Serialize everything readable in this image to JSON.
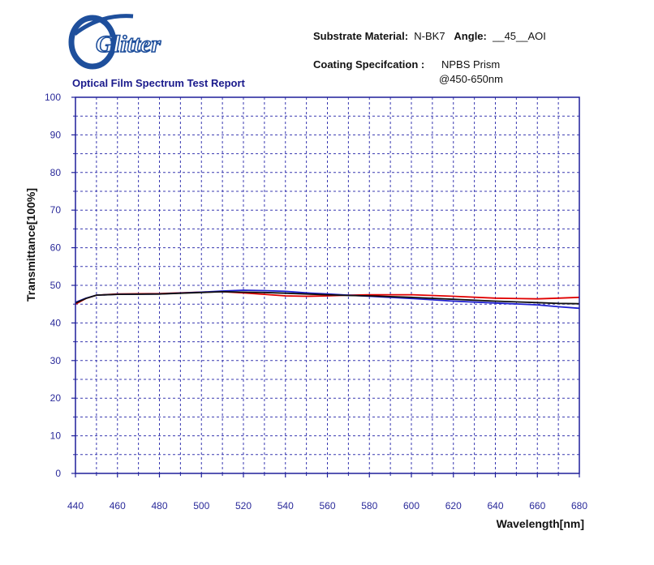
{
  "header": {
    "logo_text": "Glitter",
    "report_title": "Optical Film Spectrum Test Report",
    "substrate_label": "Substrate Material:",
    "substrate_value": "N-BK7",
    "angle_label": "Angle:",
    "angle_value": "__45__AOI",
    "coating_label": "Coating Specifcation :",
    "coating_value_1": "NPBS Prism",
    "coating_value_2": "@450-650nm"
  },
  "colors": {
    "frame": "#1f1f9a",
    "grid": "#3838b0",
    "series_red": "#e00000",
    "series_blue": "#1f1fd0",
    "series_black": "#101010",
    "logo_blue": "#1e4f9c"
  },
  "chart_data": {
    "type": "line",
    "title": "",
    "xlabel": "Wavelength[nm]",
    "ylabel": "Transmittance[100%]",
    "xlim": [
      440,
      680
    ],
    "ylim": [
      0,
      100
    ],
    "xticks": [
      440,
      460,
      480,
      500,
      520,
      540,
      560,
      580,
      600,
      620,
      640,
      660,
      680
    ],
    "yticks": [
      0,
      10,
      20,
      30,
      40,
      50,
      60,
      70,
      80,
      90,
      100
    ],
    "grid": true,
    "series": [
      {
        "color": "#e00000",
        "x": [
          440,
          445,
          450,
          460,
          480,
          500,
          510,
          520,
          530,
          540,
          550,
          560,
          570,
          580,
          600,
          620,
          640,
          660,
          670,
          680
        ],
        "y": [
          45.0,
          46.5,
          47.4,
          47.7,
          47.8,
          48.2,
          48.3,
          48.0,
          47.6,
          47.2,
          47.1,
          47.2,
          47.4,
          47.5,
          47.5,
          47.1,
          46.6,
          46.4,
          46.6,
          46.8
        ]
      },
      {
        "color": "#1f1fd0",
        "x": [
          440,
          445,
          450,
          460,
          480,
          500,
          510,
          520,
          530,
          540,
          550,
          560,
          570,
          580,
          600,
          620,
          640,
          660,
          670,
          680
        ],
        "y": [
          45.5,
          46.6,
          47.4,
          47.6,
          47.7,
          48.2,
          48.5,
          48.7,
          48.6,
          48.4,
          48.0,
          47.7,
          47.4,
          47.1,
          46.5,
          45.8,
          45.3,
          44.8,
          44.3,
          43.9
        ]
      },
      {
        "color": "#101010",
        "x": [
          440,
          445,
          450,
          460,
          480,
          500,
          510,
          520,
          530,
          540,
          550,
          560,
          570,
          580,
          600,
          620,
          640,
          660,
          670,
          680
        ],
        "y": [
          45.3,
          46.5,
          47.4,
          47.6,
          47.7,
          48.1,
          48.3,
          48.2,
          48.1,
          47.9,
          47.7,
          47.5,
          47.3,
          47.2,
          46.8,
          46.3,
          45.8,
          45.4,
          45.2,
          45.1
        ]
      }
    ]
  }
}
